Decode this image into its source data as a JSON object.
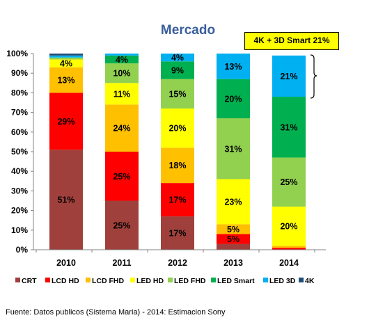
{
  "chart_data": {
    "type": "bar",
    "stacked": true,
    "title": "Mercado",
    "categories": [
      "2010",
      "2011",
      "2012",
      "2013",
      "2014"
    ],
    "ylim": [
      0,
      100
    ],
    "yticks": [
      "0%",
      "10%",
      "20%",
      "30%",
      "40%",
      "50%",
      "60%",
      "70%",
      "80%",
      "90%",
      "100%"
    ],
    "legend_position": "bottom",
    "grid": false,
    "series": [
      {
        "name": "CRT",
        "color": "#a0403c",
        "values": [
          51,
          25,
          17,
          3,
          0
        ]
      },
      {
        "name": "LCD HD",
        "color": "#ff0000",
        "values": [
          29,
          25,
          17,
          5,
          1
        ]
      },
      {
        "name": "LCD FHD",
        "color": "#ffc000",
        "values": [
          13,
          24,
          18,
          5,
          1
        ]
      },
      {
        "name": "LED HD",
        "color": "#ffff00",
        "values": [
          4,
          11,
          20,
          23,
          20
        ]
      },
      {
        "name": "LED FHD",
        "color": "#92d050",
        "values": [
          1,
          10,
          15,
          31,
          25
        ]
      },
      {
        "name": "LED Smart",
        "color": "#00b050",
        "values": [
          0,
          4,
          9,
          20,
          31
        ]
      },
      {
        "name": "LED 3D",
        "color": "#00b0f0",
        "values": [
          1,
          1,
          4,
          13,
          21
        ]
      },
      {
        "name": "4K",
        "color": "#1f4e79",
        "values": [
          1,
          0,
          0,
          0,
          0
        ]
      }
    ],
    "data_labels": [
      {
        "bar": 0,
        "series": 0,
        "text": "51%",
        "color": "#000000"
      },
      {
        "bar": 0,
        "series": 1,
        "text": "29%",
        "color": "#000000"
      },
      {
        "bar": 0,
        "series": 2,
        "text": "13%",
        "color": "#000000"
      },
      {
        "bar": 0,
        "series": 3,
        "text": "4%",
        "color": "#000000"
      },
      {
        "bar": 1,
        "series": 0,
        "text": "25%",
        "color": "#000000"
      },
      {
        "bar": 1,
        "series": 1,
        "text": "25%",
        "color": "#000000"
      },
      {
        "bar": 1,
        "series": 2,
        "text": "24%",
        "color": "#000000"
      },
      {
        "bar": 1,
        "series": 3,
        "text": "11%",
        "color": "#000000"
      },
      {
        "bar": 1,
        "series": 4,
        "text": "10%",
        "color": "#000000"
      },
      {
        "bar": 1,
        "series": 5,
        "text": "4%",
        "color": "#000000"
      },
      {
        "bar": 2,
        "series": 0,
        "text": "17%",
        "color": "#000000"
      },
      {
        "bar": 2,
        "series": 1,
        "text": "17%",
        "color": "#000000"
      },
      {
        "bar": 2,
        "series": 2,
        "text": "18%",
        "color": "#000000"
      },
      {
        "bar": 2,
        "series": 3,
        "text": "20%",
        "color": "#000000"
      },
      {
        "bar": 2,
        "series": 4,
        "text": "15%",
        "color": "#000000"
      },
      {
        "bar": 2,
        "series": 5,
        "text": "9%",
        "color": "#000000"
      },
      {
        "bar": 2,
        "series": 6,
        "text": "4%",
        "color": "#000000"
      },
      {
        "bar": 3,
        "series": 1,
        "text": "5%",
        "color": "#000000"
      },
      {
        "bar": 3,
        "series": 2,
        "text": "5%",
        "color": "#000000"
      },
      {
        "bar": 3,
        "series": 3,
        "text": "23%",
        "color": "#000000"
      },
      {
        "bar": 3,
        "series": 4,
        "text": "31%",
        "color": "#000000"
      },
      {
        "bar": 3,
        "series": 5,
        "text": "20%",
        "color": "#000000"
      },
      {
        "bar": 3,
        "series": 6,
        "text": "13%",
        "color": "#000000"
      },
      {
        "bar": 4,
        "series": 3,
        "text": "20%",
        "color": "#000000"
      },
      {
        "bar": 4,
        "series": 4,
        "text": "25%",
        "color": "#000000"
      },
      {
        "bar": 4,
        "series": 5,
        "text": "31%",
        "color": "#000000"
      },
      {
        "bar": 4,
        "series": 6,
        "text": "21%",
        "color": "#000000"
      }
    ],
    "annotation": "4K + 3D Smart 21%"
  },
  "source_text": "Fuente: Datos publicos (Sistema Maria) - 2014: Estimacion Sony"
}
